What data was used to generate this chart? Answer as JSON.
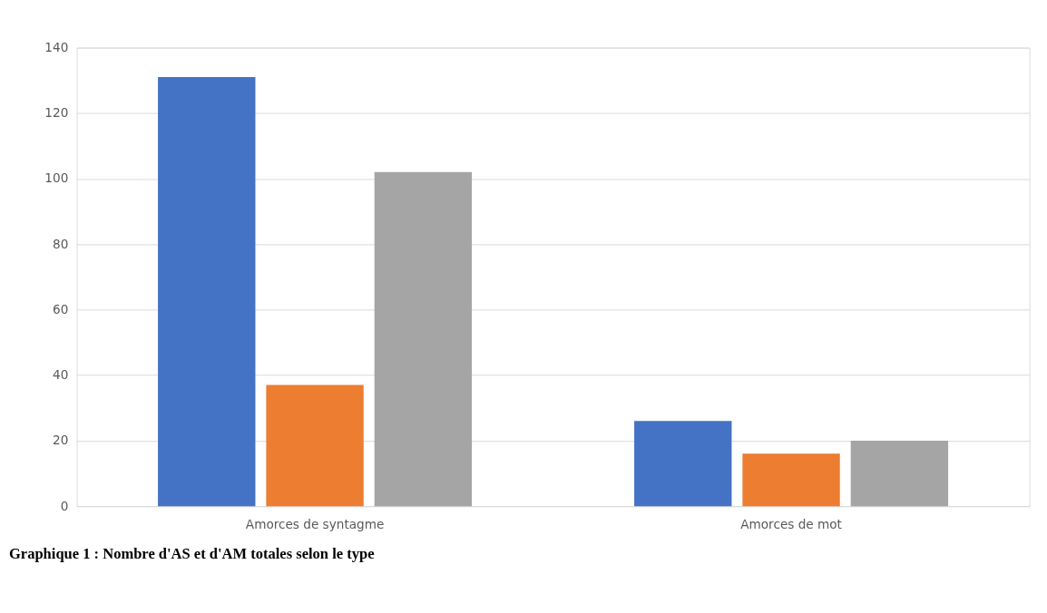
{
  "chart_data": {
    "type": "bar",
    "categories": [
      "Amorces de syntagme",
      "Amorces de mot"
    ],
    "series": [
      {
        "color": "#4472c4",
        "values": [
          131,
          26
        ]
      },
      {
        "color": "#ed7d31",
        "values": [
          37,
          16
        ]
      },
      {
        "color": "#a5a5a5",
        "values": [
          102,
          20
        ]
      }
    ],
    "ylim": [
      0,
      140
    ],
    "yticks": [
      0,
      20,
      40,
      60,
      80,
      100,
      120,
      140
    ],
    "grid": "y",
    "legend": false,
    "annotations": [
      "Graphique 1 : Nombre d'AS et d'AM totales selon le type"
    ]
  }
}
